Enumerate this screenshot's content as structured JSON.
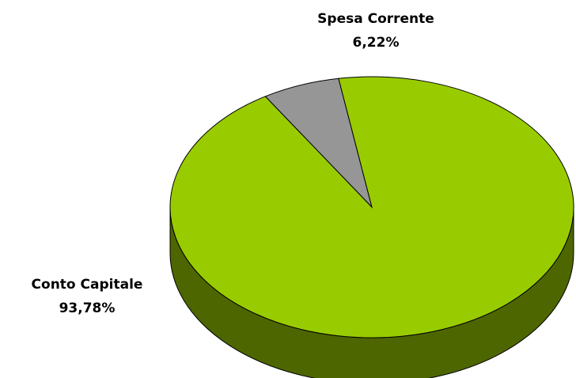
{
  "chart_data": {
    "type": "pie",
    "categories": [
      "Spesa Corrente",
      "Conto Capitale"
    ],
    "values": [
      6.22,
      93.78
    ],
    "value_labels": [
      "6,22%",
      "93,78%"
    ],
    "colors": [
      "#969696",
      "#99cc00"
    ]
  }
}
